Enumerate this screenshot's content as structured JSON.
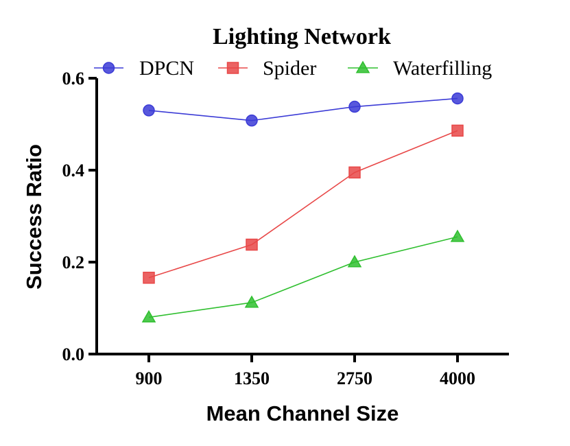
{
  "chart_data": {
    "type": "line",
    "title": "Lighting Network",
    "xlabel": "Mean Channel Size",
    "ylabel": "Success Ratio",
    "categories": [
      "900",
      "1350",
      "2750",
      "4000"
    ],
    "ylim": [
      0,
      0.6
    ],
    "yticks": [
      "0.0",
      "0.2",
      "0.4",
      "0.6"
    ],
    "legend_position": "top",
    "grid": false,
    "series": [
      {
        "name": "DPCN",
        "values": [
          0.53,
          0.508,
          0.538,
          0.556
        ],
        "color": "#3b3bd6",
        "marker": "circle"
      },
      {
        "name": "Spider",
        "values": [
          0.166,
          0.238,
          0.395,
          0.486
        ],
        "color": "#e84848",
        "marker": "square"
      },
      {
        "name": "Waterfilling",
        "values": [
          0.08,
          0.112,
          0.2,
          0.255
        ],
        "color": "#2fbf2f",
        "marker": "triangle"
      }
    ]
  }
}
